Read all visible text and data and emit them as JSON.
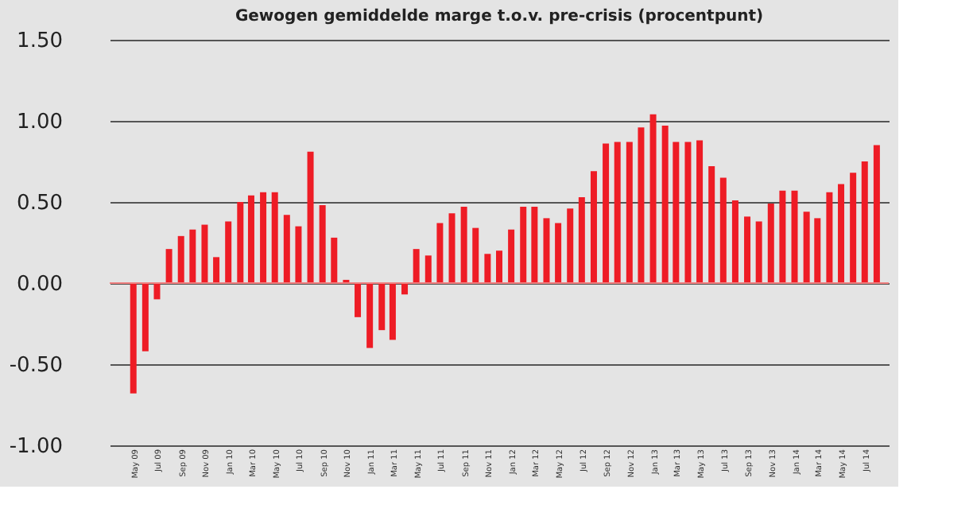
{
  "chart_data": {
    "type": "bar",
    "title": "Gewogen gemiddelde marge t.o.v. pre-crisis (procentpunt)",
    "x": [
      "2009-05",
      "2009-06",
      "2009-07",
      "2009-08",
      "2009-09",
      "2009-10",
      "2009-11",
      "2009-12",
      "2010-01",
      "2010-02",
      "2010-03",
      "2010-04",
      "2010-05",
      "2010-06",
      "2010-07",
      "2010-08",
      "2010-09",
      "2010-10",
      "2010-11",
      "2010-12",
      "2011-01",
      "2011-02",
      "2011-03",
      "2011-04",
      "2011-05",
      "2011-06",
      "2011-07",
      "2011-08",
      "2011-09",
      "2011-10",
      "2011-11",
      "2011-12",
      "2012-01",
      "2012-02",
      "2012-03",
      "2012-04",
      "2012-05",
      "2012-06",
      "2012-07",
      "2012-08",
      "2012-09",
      "2012-10",
      "2012-11",
      "2012-12",
      "2013-01",
      "2013-02",
      "2013-03",
      "2013-04",
      "2013-05",
      "2013-06",
      "2013-07",
      "2013-08",
      "2013-09",
      "2013-10",
      "2013-11",
      "2013-12",
      "2014-01",
      "2014-02",
      "2014-03",
      "2014-04",
      "2014-05",
      "2014-06",
      "2014-07",
      "2014-08"
    ],
    "values": [
      -0.68,
      -0.42,
      -0.1,
      0.21,
      0.29,
      0.33,
      0.36,
      0.16,
      0.38,
      0.5,
      0.54,
      0.56,
      0.56,
      0.42,
      0.35,
      0.81,
      0.48,
      0.28,
      0.02,
      -0.21,
      -0.4,
      -0.29,
      -0.35,
      -0.07,
      0.21,
      0.17,
      0.37,
      0.43,
      0.47,
      0.34,
      0.18,
      0.2,
      0.33,
      0.47,
      0.47,
      0.4,
      0.37,
      0.46,
      0.53,
      0.69,
      0.86,
      0.87,
      0.87,
      0.96,
      1.04,
      0.97,
      0.87,
      0.87,
      0.88,
      0.72,
      0.65,
      0.51,
      0.41,
      0.38,
      0.49,
      0.57,
      0.57,
      0.44,
      0.4,
      0.56,
      0.61,
      0.68,
      0.75,
      0.85
    ],
    "color": "#ee1c25",
    "xlim": [
      "2009-03",
      "2014-09"
    ],
    "xticks": [
      {
        "value": "2009-05",
        "label": "May 09"
      },
      {
        "value": "2009-07",
        "label": "Jul 09"
      },
      {
        "value": "2009-09",
        "label": "Sep 09"
      },
      {
        "value": "2009-11",
        "label": "Nov 09"
      },
      {
        "value": "2010-01",
        "label": "Jan 10"
      },
      {
        "value": "2010-03",
        "label": "Mar 10"
      },
      {
        "value": "2010-05",
        "label": "May 10"
      },
      {
        "value": "2010-07",
        "label": "Jul 10"
      },
      {
        "value": "2010-09",
        "label": "Sep 10"
      },
      {
        "value": "2010-11",
        "label": "Nov 10"
      },
      {
        "value": "2011-01",
        "label": "Jan 11"
      },
      {
        "value": "2011-03",
        "label": "Mar 11"
      },
      {
        "value": "2011-05",
        "label": "May 11"
      },
      {
        "value": "2011-07",
        "label": "Jul 11"
      },
      {
        "value": "2011-09",
        "label": "Sep 11"
      },
      {
        "value": "2011-11",
        "label": "Nov 11"
      },
      {
        "value": "2012-01",
        "label": "Jan 12"
      },
      {
        "value": "2012-03",
        "label": "Mar 12"
      },
      {
        "value": "2012-05",
        "label": "May 12"
      },
      {
        "value": "2012-07",
        "label": "Jul 12"
      },
      {
        "value": "2012-09",
        "label": "Sep 12"
      },
      {
        "value": "2012-11",
        "label": "Nov 12"
      },
      {
        "value": "2013-01",
        "label": "Jan 13"
      },
      {
        "value": "2013-03",
        "label": "Mar 13"
      },
      {
        "value": "2013-05",
        "label": "May 13"
      },
      {
        "value": "2013-07",
        "label": "Jul 13"
      },
      {
        "value": "2013-09",
        "label": "Sep 13"
      },
      {
        "value": "2013-11",
        "label": "Nov 13"
      },
      {
        "value": "2014-01",
        "label": "Jan 14"
      },
      {
        "value": "2014-03",
        "label": "Mar 14"
      },
      {
        "value": "2014-05",
        "label": "May 14"
      },
      {
        "value": "2014-07",
        "label": "Jul 14"
      }
    ],
    "ylim": [
      -1,
      1.5
    ],
    "yticks": [
      {
        "value": -1,
        "label": "-1.00"
      },
      {
        "value": -0.5,
        "label": "-0.50"
      },
      {
        "value": 0,
        "label": "0.00"
      },
      {
        "value": 0.5,
        "label": "0.50"
      },
      {
        "value": 1,
        "label": "1.00"
      },
      {
        "value": 1.5,
        "label": "1.50"
      }
    ],
    "ref_lines": [
      {
        "axis": "y",
        "value": 0,
        "color": "#f08080"
      }
    ],
    "grid": "y"
  }
}
